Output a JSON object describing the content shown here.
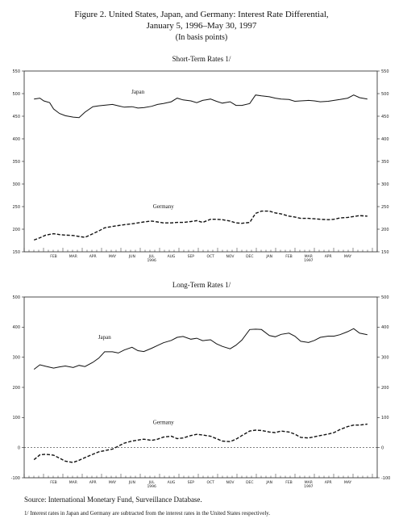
{
  "page": {
    "title_line1": "Figure 2. United States, Japan, and Germany: Interest Rate Differential,",
    "title_line2": "January 5, 1996–May 30, 1997",
    "title_line3": "(In basis points)",
    "source": "Source: International Monetary Fund, Surveillance Database.",
    "footnote": "1/ Interest rates in Japan and Germany are subtracted from the interest rates in the United States respectively."
  },
  "chart_data": [
    {
      "type": "line",
      "title": "Short-Term Rates 1/",
      "ylim": [
        150,
        550
      ],
      "yticks": [
        150,
        200,
        250,
        300,
        350,
        400,
        450,
        500,
        550
      ],
      "months": [
        "FEB",
        "MAR",
        "APR",
        "MAY",
        "JUN",
        "JUL",
        "AUG",
        "SEP",
        "OCT",
        "NOV",
        "DEC",
        "JAN",
        "FEB",
        "MAR",
        "APR",
        "MAY"
      ],
      "year_labels": [
        {
          "month_index": 5,
          "label": "1996"
        },
        {
          "month_index": 13,
          "label": "1997"
        }
      ],
      "series": [
        {
          "name": "Japan",
          "style": "solid",
          "x": [
            0.0,
            0.3,
            0.5,
            0.8,
            1.0,
            1.3,
            1.6,
            2.0,
            2.3,
            2.6,
            3.0,
            3.3,
            3.5,
            4.0,
            4.3,
            4.6,
            5.0,
            5.3,
            5.6,
            6.0,
            6.3,
            6.6,
            7.0,
            7.3,
            7.6,
            8.0,
            8.3,
            8.6,
            9.0,
            9.3,
            9.6,
            10.0,
            10.3,
            10.6,
            11.0,
            11.3,
            11.6,
            12.0,
            12.3,
            12.6,
            13.0,
            13.3,
            13.6,
            14.0,
            14.3,
            14.6,
            15.0,
            15.3,
            15.6,
            16.0,
            16.3,
            16.6,
            17.0
          ],
          "y": [
            488,
            490,
            484,
            480,
            466,
            456,
            451,
            448,
            447,
            459,
            471,
            473,
            474,
            476,
            473,
            470,
            471,
            468,
            469,
            472,
            476,
            478,
            482,
            490,
            486,
            484,
            480,
            485,
            488,
            483,
            479,
            482,
            474,
            474,
            478,
            497,
            495,
            493,
            490,
            488,
            487,
            483,
            484,
            485,
            484,
            482,
            483,
            485,
            487,
            490,
            497,
            491,
            488
          ]
        },
        {
          "name": "Germany",
          "style": "dashed",
          "x": [
            0.0,
            0.3,
            0.6,
            1.0,
            1.3,
            1.6,
            2.0,
            2.3,
            2.6,
            3.0,
            3.3,
            3.6,
            4.0,
            4.3,
            4.6,
            5.0,
            5.3,
            5.6,
            6.0,
            6.3,
            6.6,
            7.0,
            7.3,
            7.6,
            8.0,
            8.3,
            8.6,
            9.0,
            9.3,
            9.6,
            10.0,
            10.3,
            10.6,
            11.0,
            11.3,
            11.6,
            12.0,
            12.3,
            12.6,
            13.0,
            13.3,
            13.6,
            14.0,
            14.3,
            14.6,
            15.0,
            15.3,
            15.6,
            16.0,
            16.3,
            16.6,
            17.0
          ],
          "y": [
            176,
            181,
            187,
            190,
            188,
            187,
            186,
            184,
            182,
            190,
            196,
            203,
            206,
            208,
            210,
            212,
            214,
            216,
            218,
            216,
            214,
            214,
            215,
            215,
            217,
            219,
            215,
            222,
            222,
            221,
            218,
            214,
            213,
            215,
            235,
            240,
            240,
            236,
            234,
            229,
            227,
            224,
            224,
            223,
            222,
            221,
            222,
            225,
            226,
            228,
            230,
            229
          ]
        }
      ]
    },
    {
      "type": "line",
      "title": "Long-Term Rates 1/",
      "ylim": [
        -100,
        500
      ],
      "yticks": [
        -100,
        0,
        100,
        200,
        300,
        400,
        500
      ],
      "months": [
        "FEB",
        "MAR",
        "APR",
        "MAY",
        "JUN",
        "JUL",
        "AUG",
        "SEP",
        "OCT",
        "NOV",
        "DEC",
        "JAN",
        "FEB",
        "MAR",
        "APR",
        "MAY"
      ],
      "year_labels": [
        {
          "month_index": 5,
          "label": "1996"
        },
        {
          "month_index": 13,
          "label": "1997"
        }
      ],
      "series": [
        {
          "name": "Japan",
          "style": "solid",
          "x": [
            0.0,
            0.3,
            0.6,
            1.0,
            1.3,
            1.6,
            2.0,
            2.3,
            2.6,
            3.0,
            3.3,
            3.6,
            4.0,
            4.3,
            4.6,
            5.0,
            5.3,
            5.6,
            6.0,
            6.3,
            6.6,
            7.0,
            7.3,
            7.6,
            8.0,
            8.3,
            8.6,
            9.0,
            9.3,
            9.6,
            10.0,
            10.3,
            10.6,
            11.0,
            11.3,
            11.6,
            12.0,
            12.3,
            12.6,
            13.0,
            13.3,
            13.6,
            14.0,
            14.3,
            14.6,
            15.0,
            15.3,
            15.6,
            16.0,
            16.3,
            16.6,
            17.0
          ],
          "y": [
            260,
            275,
            270,
            264,
            268,
            271,
            266,
            273,
            269,
            283,
            297,
            318,
            318,
            314,
            324,
            333,
            322,
            319,
            330,
            339,
            348,
            356,
            366,
            369,
            360,
            363,
            355,
            358,
            345,
            336,
            328,
            340,
            357,
            392,
            393,
            392,
            372,
            368,
            376,
            380,
            370,
            353,
            349,
            356,
            366,
            370,
            370,
            375,
            385,
            395,
            380,
            375
          ]
        },
        {
          "name": "Germany",
          "style": "dashed",
          "x": [
            0.0,
            0.3,
            0.6,
            1.0,
            1.3,
            1.6,
            2.0,
            2.3,
            2.6,
            3.0,
            3.3,
            3.6,
            4.0,
            4.3,
            4.6,
            5.0,
            5.3,
            5.6,
            6.0,
            6.3,
            6.6,
            7.0,
            7.3,
            7.6,
            8.0,
            8.3,
            8.6,
            9.0,
            9.3,
            9.6,
            10.0,
            10.3,
            10.6,
            11.0,
            11.3,
            11.6,
            12.0,
            12.3,
            12.6,
            13.0,
            13.3,
            13.6,
            14.0,
            14.3,
            14.6,
            15.0,
            15.3,
            15.6,
            16.0,
            16.3,
            16.6,
            17.0
          ],
          "y": [
            -40,
            -24,
            -22,
            -25,
            -35,
            -45,
            -49,
            -42,
            -33,
            -22,
            -14,
            -10,
            -5,
            5,
            15,
            22,
            25,
            28,
            24,
            28,
            35,
            38,
            30,
            32,
            40,
            44,
            42,
            38,
            30,
            22,
            20,
            28,
            40,
            55,
            58,
            57,
            52,
            50,
            55,
            52,
            45,
            34,
            32,
            36,
            40,
            45,
            50,
            60,
            70,
            75,
            75,
            78
          ]
        }
      ]
    }
  ]
}
